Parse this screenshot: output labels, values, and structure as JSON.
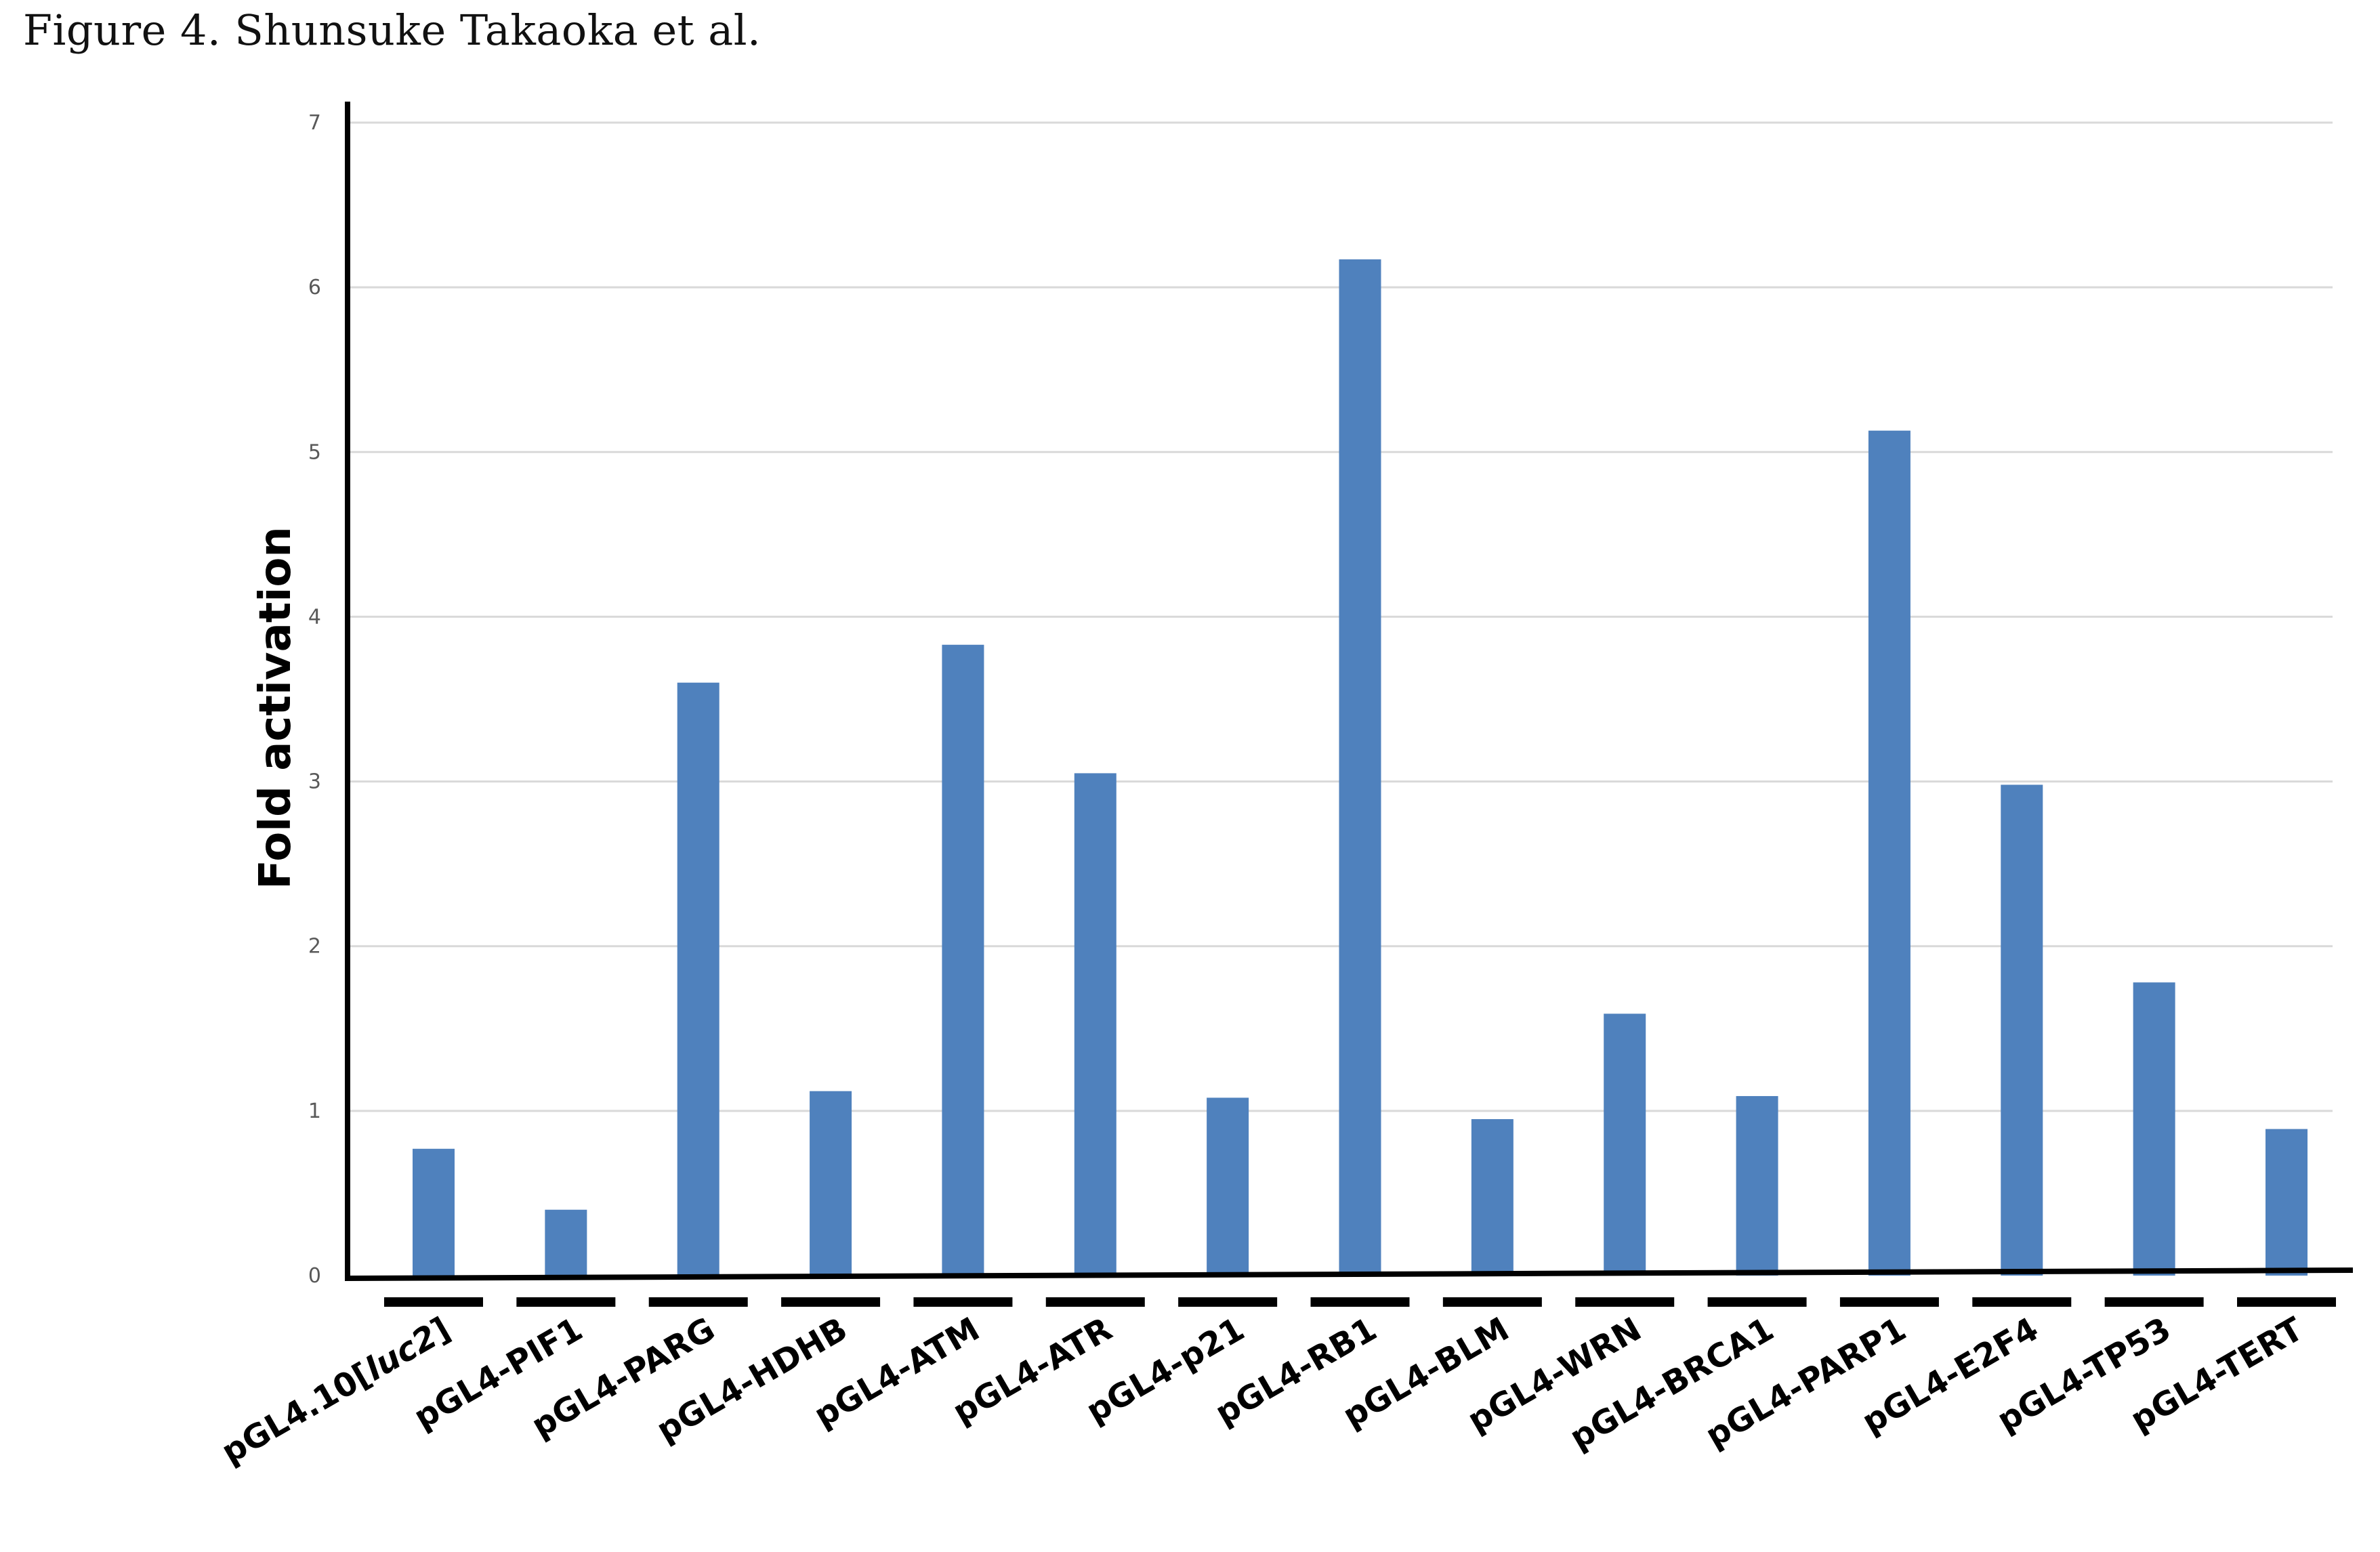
{
  "figure": {
    "caption": "Figure 4. Shunsuke Takaoka et al."
  },
  "chart_data": {
    "type": "bar",
    "xlabel": "",
    "ylabel": "Fold activation",
    "ylim": [
      0,
      7
    ],
    "yticks": [
      0,
      1,
      2,
      3,
      4,
      5,
      6,
      7
    ],
    "grid": true,
    "categories": [
      "pGL4.10[luc2]",
      "pGL4-PIF1",
      "pGL4-PARG",
      "pGL4-HDHB",
      "pGL4-ATM",
      "pGL4-ATR",
      "pGL4-p21",
      "pGL4-RB1",
      "pGL4-BLM",
      "pGL4-WRN",
      "pGL4-BRCA1",
      "pGL4-PARP1",
      "pGL4-E2F4",
      "pGL4-TP53",
      "pGL4-TERT"
    ],
    "values": [
      0.77,
      0.4,
      3.6,
      1.12,
      3.83,
      3.05,
      1.08,
      6.17,
      0.95,
      1.59,
      1.09,
      5.13,
      2.98,
      1.78,
      0.89
    ],
    "colors": {
      "bar": "#4F81BD",
      "grid": "#D9D9D9",
      "axis": "#000000",
      "tick_label": "#595959"
    }
  }
}
